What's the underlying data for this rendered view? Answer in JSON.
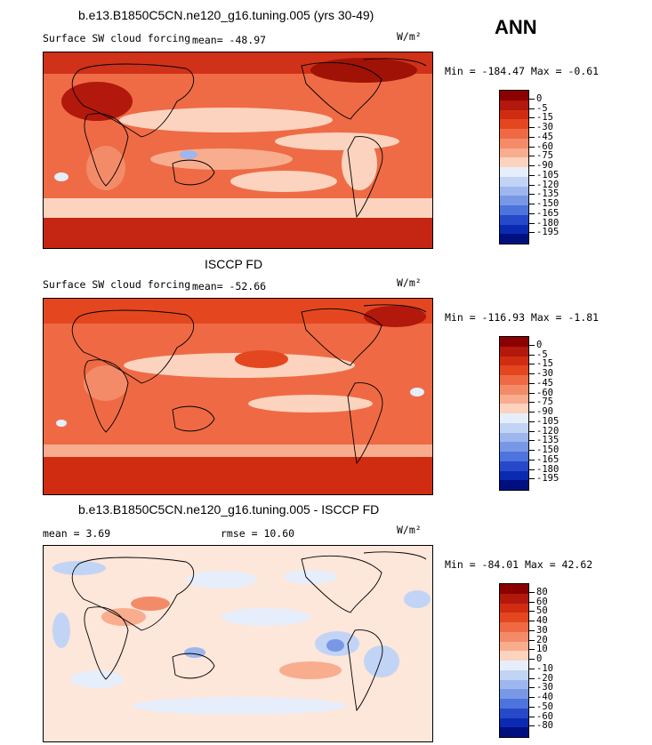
{
  "panels": [
    {
      "title": "b.e13.B1850C5CN.ne120_g16.tuning.005 (yrs 30-49)",
      "subtitle": "Surface SW cloud forcing",
      "stat_left": "mean= -48.97",
      "units": "W/m²",
      "minmax": "Min = -184.47 Max =  -0.61",
      "map_label": "model surface SW cloud forcing map"
    },
    {
      "title": "ISCCP FD",
      "subtitle": "Surface SW cloud forcing",
      "stat_left": "mean= -52.66",
      "units": "W/m²",
      "minmax": "Min = -116.93 Max =  -1.81",
      "map_label": "ISCCP FD surface SW cloud forcing map"
    },
    {
      "title": "b.e13.B1850C5CN.ne120_g16.tuning.005 - ISCCP FD",
      "subtitle": "",
      "stat_left": "mean =   3.69",
      "stat_mid": "rmse =  10.60",
      "units": "W/m²",
      "minmax": "Min = -84.01 Max =  42.62",
      "map_label": "difference map"
    }
  ],
  "season": "ANN",
  "chart_data": [
    {
      "type": "heatmap",
      "title": "b.e13.B1850C5CN.ne120_g16.tuning.005 (yrs 30-49)",
      "variable": "Surface SW cloud forcing",
      "units": "W/m2",
      "mean": -48.97,
      "min": -184.47,
      "max": -0.61,
      "colorbar_levels": [
        "0",
        "-5",
        "-15",
        "-30",
        "-45",
        "-60",
        "-75",
        "-90",
        "-105",
        "-120",
        "-135",
        "-150",
        "-165",
        "-180",
        "-195"
      ],
      "colorbar_colors": [
        "#8b0000",
        "#b2180c",
        "#d02c12",
        "#e4471f",
        "#ef6a44",
        "#f48b68",
        "#f8ad8e",
        "#fbd3be",
        "#e6eefb",
        "#c2d4f5",
        "#9db7ee",
        "#7898e6",
        "#4d73dd",
        "#2748c9",
        "#0a2ab2",
        "#000f80"
      ]
    },
    {
      "type": "heatmap",
      "title": "ISCCP FD",
      "variable": "Surface SW cloud forcing",
      "units": "W/m2",
      "mean": -52.66,
      "min": -116.93,
      "max": -1.81,
      "colorbar_levels": [
        "0",
        "-5",
        "-15",
        "-30",
        "-45",
        "-60",
        "-75",
        "-90",
        "-105",
        "-120",
        "-135",
        "-150",
        "-165",
        "-180",
        "-195"
      ],
      "colorbar_colors": [
        "#8b0000",
        "#b2180c",
        "#d02c12",
        "#e4471f",
        "#ef6a44",
        "#f48b68",
        "#f8ad8e",
        "#fbd3be",
        "#e6eefb",
        "#c2d4f5",
        "#9db7ee",
        "#7898e6",
        "#4d73dd",
        "#2748c9",
        "#0a2ab2",
        "#000f80"
      ]
    },
    {
      "type": "heatmap",
      "title": "b.e13.B1850C5CN.ne120_g16.tuning.005 - ISCCP FD",
      "units": "W/m2",
      "mean": 3.69,
      "rmse": 10.6,
      "min": -84.01,
      "max": 42.62,
      "colorbar_levels": [
        "80",
        "60",
        "50",
        "40",
        "30",
        "20",
        "10",
        "0",
        "-10",
        "-20",
        "-30",
        "-40",
        "-50",
        "-60",
        "-80"
      ],
      "colorbar_colors": [
        "#8b0000",
        "#b2180c",
        "#d02c12",
        "#e4471f",
        "#ef6a44",
        "#f48b68",
        "#f8ad8e",
        "#fbd3be",
        "#e6eefb",
        "#c2d4f5",
        "#9db7ee",
        "#7898e6",
        "#4d73dd",
        "#2748c9",
        "#0a2ab2",
        "#000f80"
      ]
    }
  ]
}
